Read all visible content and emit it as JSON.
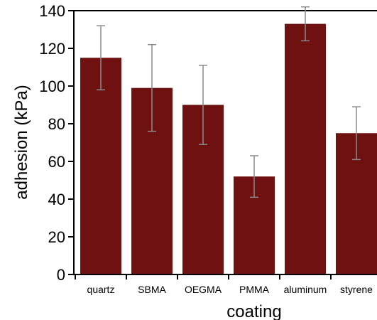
{
  "chart_data": {
    "type": "bar",
    "categories": [
      "quartz",
      "SBMA",
      "OEGMA",
      "PMMA",
      "aluminum",
      "styrene"
    ],
    "values": [
      115,
      99,
      90,
      52,
      133,
      75
    ],
    "error_low": [
      98,
      76,
      69,
      41,
      124,
      61
    ],
    "error_high": [
      132,
      122,
      111,
      63,
      142,
      89
    ],
    "xlabel": "coating",
    "ylabel": "adhesion (kPa)",
    "ylim": [
      0,
      140
    ],
    "yticks": [
      "0",
      "20",
      "40",
      "60",
      "80",
      "100",
      "120",
      "140"
    ],
    "grid": false,
    "legend": "none",
    "colors": {
      "bar": "#6f1111",
      "error_bar": "#8a8a8a",
      "axis": "#000000",
      "background": "#ffffff"
    }
  }
}
